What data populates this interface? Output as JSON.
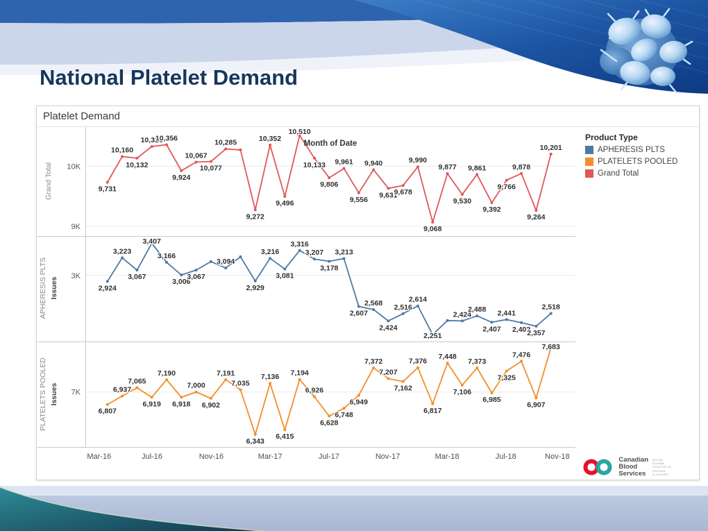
{
  "slide": {
    "title": "National Platelet Demand"
  },
  "chart": {
    "title": "Platelet Demand",
    "x_axis": {
      "title": "Month of Date"
    },
    "legend": {
      "title": "Product Type",
      "items": [
        {
          "label": "APHERESIS PLTS",
          "color": "#4e79a7"
        },
        {
          "label": "PLATELETS POOLED",
          "color": "#f28e2b"
        },
        {
          "label": "Grand Total",
          "color": "#e15759"
        }
      ]
    }
  },
  "chart_data": {
    "type": "line",
    "title": "Platelet Demand",
    "xlabel": "Month of Date",
    "x_tick_labels": [
      "Mar-16",
      "Jul-16",
      "Nov-16",
      "Mar-17",
      "Jul-17",
      "Nov-17",
      "Mar-18",
      "Jul-18",
      "Nov-18"
    ],
    "legend": {
      "title": "Product Type",
      "entries": [
        "APHERESIS PLTS",
        "PLATELETS POOLED",
        "Grand Total"
      ]
    },
    "panels": [
      {
        "row_label": "Grand Total",
        "issues_label": "",
        "color": "#e15759",
        "y_range": [
          8850,
          10650
        ],
        "y_ticks": [
          {
            "label": "10K",
            "value": 10000
          },
          {
            "label": "9K",
            "value": 9000
          }
        ],
        "values": [
          9731,
          10160,
          10132,
          10326,
          10356,
          9924,
          10067,
          10077,
          10285,
          10270,
          9272,
          10352,
          9496,
          10510,
          10133,
          9806,
          9961,
          9556,
          9940,
          9631,
          9678,
          9990,
          9068,
          9877,
          9530,
          9861,
          9392,
          9766,
          9878,
          9264,
          10201
        ],
        "point_labels": [
          "9,731",
          "10,160",
          "10,132",
          "10,326",
          "10,356",
          "9,924",
          "10,067",
          "10,077",
          "10,285",
          "",
          "9,272",
          "10,352",
          "9,496",
          "10,510",
          "10,133",
          "9,806",
          "9,961",
          "9,556",
          "9,940",
          "9,631",
          "9,678",
          "9,990",
          "9,068",
          "9,877",
          "9,530",
          "9,861",
          "9,392",
          "9,766",
          "9,878",
          "9,264",
          "10,201"
        ],
        "label_pos": [
          "b",
          "a",
          "b",
          "a",
          "a",
          "b",
          "a",
          "b",
          "a",
          "",
          "b",
          "a",
          "b",
          "a",
          "b",
          "b",
          "a",
          "b",
          "a",
          "b",
          "b",
          "a",
          "b",
          "a",
          "b",
          "a",
          "b",
          "b",
          "a",
          "b",
          "a"
        ]
      },
      {
        "row_label": "APHERESIS PLTS",
        "issues_label": "Issues",
        "color": "#4e79a7",
        "y_range": [
          2190,
          3490
        ],
        "y_ticks": [
          {
            "label": "3K",
            "value": 3000
          }
        ],
        "values": [
          2924,
          3223,
          3067,
          3407,
          3166,
          3006,
          3067,
          3175,
          3094,
          3235,
          2929,
          3216,
          3081,
          3316,
          3207,
          3178,
          3213,
          2607,
          2568,
          2424,
          2516,
          2614,
          2251,
          2429,
          2424,
          2488,
          2407,
          2441,
          2402,
          2357,
          2518
        ],
        "point_labels": [
          "2,924",
          "3,223",
          "3,067",
          "3,407",
          "3,166",
          "3,006",
          "3,067",
          "",
          "3,094",
          "",
          "2,929",
          "3,216",
          "3,081",
          "3,316",
          "3,207",
          "3,178",
          "3,213",
          "2,607",
          "2,568",
          "2,424",
          "2,516",
          "2,614",
          "2,251",
          "",
          "2,424",
          "2,488",
          "2,407",
          "2,441",
          "2,402",
          "2,357",
          "2,518"
        ],
        "label_pos": [
          "b",
          "a",
          "b",
          "a",
          "a",
          "b",
          "b",
          "",
          "a",
          "",
          "b",
          "a",
          "b",
          "a",
          "a",
          "b",
          "a",
          "b",
          "a",
          "b",
          "a",
          "a",
          "b",
          "",
          "a",
          "a",
          "b",
          "a",
          "b",
          "b",
          "a"
        ]
      },
      {
        "row_label": "PLATELETS POOLED",
        "issues_label": "Issues",
        "color": "#f28e2b",
        "y_range": [
          6160,
          7770
        ],
        "y_ticks": [
          {
            "label": "7K",
            "value": 7000
          }
        ],
        "values": [
          6807,
          6937,
          7065,
          6919,
          7190,
          6918,
          7000,
          6902,
          7191,
          7035,
          6343,
          7136,
          6415,
          7194,
          6926,
          6628,
          6748,
          6949,
          7372,
          7207,
          7162,
          7376,
          6817,
          7448,
          7106,
          7373,
          6985,
          7325,
          7476,
          6907,
          7683
        ],
        "point_labels": [
          "6,807",
          "6,937",
          "7,065",
          "6,919",
          "7,190",
          "6,918",
          "7,000",
          "6,902",
          "7,191",
          "7,035",
          "6,343",
          "7,136",
          "6,415",
          "7,194",
          "6,926",
          "6,628",
          "6,748",
          "6,949",
          "7,372",
          "7,207",
          "7,162",
          "7,376",
          "6,817",
          "7,448",
          "7,106",
          "7,373",
          "6,985",
          "7,325",
          "7,476",
          "6,907",
          "7,683"
        ],
        "label_pos": [
          "b",
          "a",
          "a",
          "b",
          "a",
          "b",
          "a",
          "b",
          "a",
          "a",
          "b",
          "a",
          "b",
          "a",
          "a",
          "b",
          "b",
          "b",
          "a",
          "a",
          "b",
          "a",
          "b",
          "a",
          "b",
          "a",
          "b",
          "b",
          "a",
          "b",
          "a"
        ]
      }
    ]
  },
  "logo": {
    "name_lines": [
      "Canadian",
      "Blood",
      "Services"
    ],
    "tagline_lines": [
      "BLOOD",
      "PLASMA",
      "STEM CELLS",
      "ORGANS",
      "& TISSUES"
    ],
    "red": "#e8112d",
    "teal": "#28a7a1"
  }
}
